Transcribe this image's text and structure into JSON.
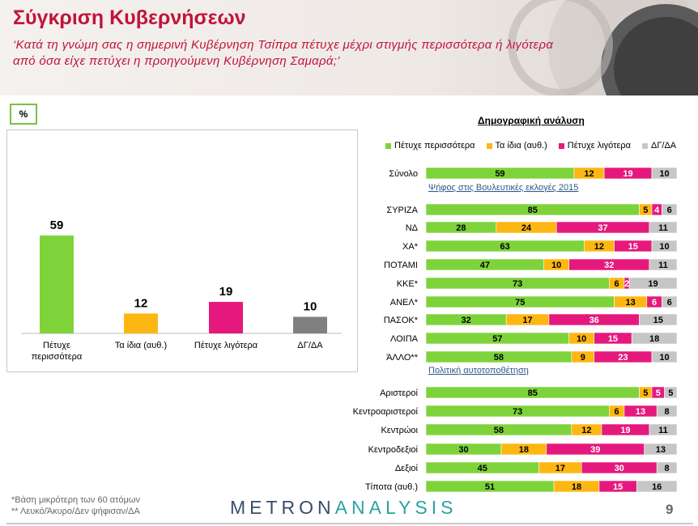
{
  "header": {
    "title": "Σύγκριση Κυβερνήσεων",
    "subtitle": "‘Κατά τη γνώμη σας η σημερινή Κυβέρνηση Τσίπρα πέτυχε μέχρι στιγμής περισσότερα ή λιγότερα από όσα είχε πετύχει η προηγούμενη Κυβέρνηση Σαμαρά;’"
  },
  "badge": "%",
  "demo_title": "Δημογραφική ανάλυση",
  "legend": [
    {
      "label": "Πέτυχε περισσότερα",
      "color": "#7ed33a"
    },
    {
      "label": "Τα ίδια (αυθ.)",
      "color": "#fdb712"
    },
    {
      "label": "Πέτυχε λιγότερα",
      "color": "#e5197d"
    },
    {
      "label": "ΔΓ/ΔΑ",
      "color": "#c6c6c6"
    }
  ],
  "footnotes": [
    "*Βάση μικρότερη των 60 ατόμων",
    "** Λευκό/Άκυρο/Δεν ψήφισαν/ΔΑ"
  ],
  "logo": {
    "part1": "METRON",
    "part2": "ANALYSIS"
  },
  "page_number": "9",
  "chart_data": [
    {
      "type": "bar",
      "categories": [
        "Πέτυχε περισσότερα",
        "Τα ίδια (αυθ.)",
        "Πέτυχε λιγότερα",
        "ΔΓ/ΔΑ"
      ],
      "values": [
        59,
        12,
        19,
        10
      ],
      "colors": [
        "#7ed33a",
        "#fdb712",
        "#e5197d",
        "#808080"
      ]
    },
    {
      "type": "bar",
      "stacked": true,
      "orientation": "horizontal",
      "series_names": [
        "Πέτυχε περισσότερα",
        "Τα ίδια (αυθ.)",
        "Πέτυχε λιγότερα",
        "ΔΓ/ΔΑ"
      ],
      "colors": [
        "#7ed33a",
        "#fdb712",
        "#e5197d",
        "#c6c6c6"
      ],
      "groups": [
        {
          "title": "",
          "rows": [
            {
              "label": "Σύνολο",
              "values": [
                59,
                12,
                19,
                10
              ]
            }
          ]
        },
        {
          "title": "Ψήφος στις Βουλευτικές εκλογές 2015",
          "rows": [
            {
              "label": "ΣΥΡΙΖΑ",
              "values": [
                85,
                5,
                4,
                6
              ]
            },
            {
              "label": "ΝΔ",
              "values": [
                28,
                24,
                37,
                11
              ]
            },
            {
              "label": "ΧΑ*",
              "values": [
                63,
                12,
                15,
                10
              ]
            },
            {
              "label": "ΠΟΤΑΜΙ",
              "values": [
                47,
                10,
                32,
                11
              ]
            },
            {
              "label": "ΚΚΕ*",
              "values": [
                73,
                6,
                2,
                19
              ]
            },
            {
              "label": "ΑΝΕΛ*",
              "values": [
                75,
                13,
                6,
                6
              ]
            },
            {
              "label": "ΠΑΣΟΚ*",
              "values": [
                32,
                17,
                36,
                15
              ]
            },
            {
              "label": "ΛΟΙΠΑ",
              "values": [
                57,
                10,
                15,
                18
              ]
            },
            {
              "label": "ΆΛΛΟ**",
              "values": [
                58,
                9,
                23,
                10
              ]
            }
          ]
        },
        {
          "title": "Πολιτική αυτοτοποθέτηση",
          "rows": [
            {
              "label": "Αριστεροί",
              "values": [
                85,
                5,
                5,
                5
              ]
            },
            {
              "label": "Κεντροαριστεροί",
              "values": [
                73,
                6,
                13,
                8
              ]
            },
            {
              "label": "Κεντρώοι",
              "values": [
                58,
                12,
                19,
                11
              ]
            },
            {
              "label": "Κεντροδεξιοί",
              "values": [
                30,
                18,
                39,
                13
              ]
            },
            {
              "label": "Δεξιοί",
              "values": [
                45,
                17,
                30,
                8
              ]
            },
            {
              "label": "Τίποτα (αυθ.)",
              "values": [
                51,
                18,
                15,
                16
              ]
            }
          ]
        }
      ]
    }
  ]
}
